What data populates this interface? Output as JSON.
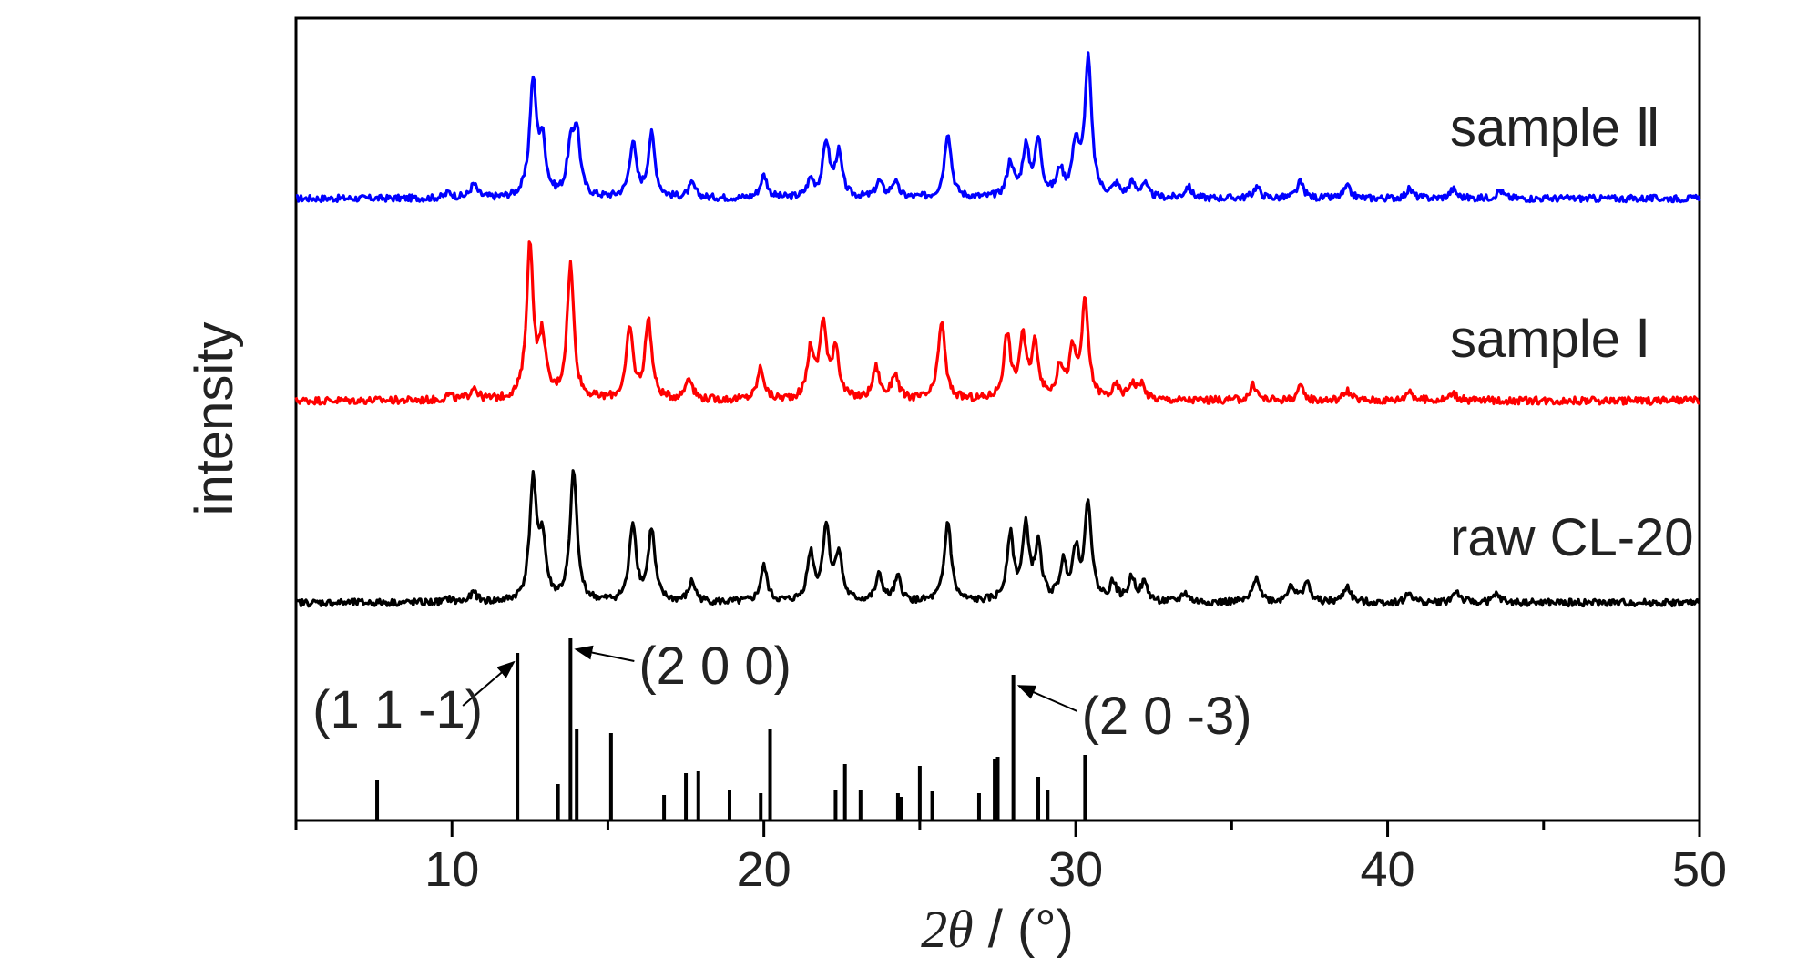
{
  "chart_data": {
    "type": "line",
    "xlabel": "2θ / (°)",
    "xlabel_parts": {
      "symbol": "2θ",
      "unit": " / (°)"
    },
    "ylabel": "intensity",
    "xlim": [
      5,
      50
    ],
    "x_ticks": [
      10,
      20,
      30,
      40,
      50
    ],
    "grid": false,
    "legend": "none",
    "series": [
      {
        "name": "sample Ⅱ",
        "color": "#0000ff",
        "peaks": [
          [
            9.9,
            0.05
          ],
          [
            10.7,
            0.12
          ],
          [
            12.6,
            1.0
          ],
          [
            12.9,
            0.45
          ],
          [
            13.8,
            0.38
          ],
          [
            14.0,
            0.55
          ],
          [
            15.8,
            0.48
          ],
          [
            16.4,
            0.55
          ],
          [
            17.7,
            0.12
          ],
          [
            20.0,
            0.2
          ],
          [
            21.5,
            0.15
          ],
          [
            22.0,
            0.48
          ],
          [
            22.4,
            0.38
          ],
          [
            23.7,
            0.14
          ],
          [
            24.2,
            0.14
          ],
          [
            25.9,
            0.58
          ],
          [
            27.9,
            0.3
          ],
          [
            28.4,
            0.42
          ],
          [
            28.8,
            0.48
          ],
          [
            29.5,
            0.22
          ],
          [
            30.0,
            0.45
          ],
          [
            30.4,
            1.2
          ],
          [
            31.3,
            0.1
          ],
          [
            31.8,
            0.12
          ],
          [
            32.2,
            0.12
          ],
          [
            33.6,
            0.1
          ],
          [
            35.8,
            0.1
          ],
          [
            37.2,
            0.14
          ],
          [
            38.7,
            0.1
          ],
          [
            40.7,
            0.08
          ],
          [
            42.1,
            0.08
          ],
          [
            43.6,
            0.07
          ]
        ]
      },
      {
        "name": "sample Ⅰ",
        "color": "#ff0000",
        "peaks": [
          [
            9.9,
            0.04
          ],
          [
            10.7,
            0.1
          ],
          [
            12.5,
            1.2
          ],
          [
            12.9,
            0.45
          ],
          [
            13.8,
            1.05
          ],
          [
            15.7,
            0.55
          ],
          [
            16.3,
            0.62
          ],
          [
            17.6,
            0.18
          ],
          [
            19.9,
            0.25
          ],
          [
            21.5,
            0.38
          ],
          [
            21.9,
            0.58
          ],
          [
            22.3,
            0.4
          ],
          [
            23.6,
            0.25
          ],
          [
            24.2,
            0.2
          ],
          [
            25.7,
            0.62
          ],
          [
            27.8,
            0.5
          ],
          [
            28.3,
            0.46
          ],
          [
            28.7,
            0.42
          ],
          [
            29.5,
            0.25
          ],
          [
            29.9,
            0.35
          ],
          [
            30.3,
            0.75
          ],
          [
            31.3,
            0.1
          ],
          [
            31.8,
            0.12
          ],
          [
            32.1,
            0.12
          ],
          [
            35.7,
            0.12
          ],
          [
            37.2,
            0.1
          ],
          [
            38.7,
            0.08
          ],
          [
            40.7,
            0.08
          ],
          [
            42.1,
            0.06
          ]
        ]
      },
      {
        "name": "raw CL-20",
        "color": "#000000",
        "peaks": [
          [
            9.9,
            0.03
          ],
          [
            10.7,
            0.08
          ],
          [
            12.6,
            1.0
          ],
          [
            12.9,
            0.5
          ],
          [
            13.9,
            1.1
          ],
          [
            15.8,
            0.66
          ],
          [
            16.4,
            0.6
          ],
          [
            17.7,
            0.17
          ],
          [
            20.0,
            0.3
          ],
          [
            21.5,
            0.4
          ],
          [
            22.0,
            0.63
          ],
          [
            22.4,
            0.4
          ],
          [
            23.7,
            0.22
          ],
          [
            24.3,
            0.2
          ],
          [
            25.9,
            0.68
          ],
          [
            27.9,
            0.55
          ],
          [
            28.4,
            0.6
          ],
          [
            28.8,
            0.45
          ],
          [
            29.6,
            0.3
          ],
          [
            30.0,
            0.4
          ],
          [
            30.4,
            0.82
          ],
          [
            31.2,
            0.15
          ],
          [
            31.8,
            0.2
          ],
          [
            32.2,
            0.15
          ],
          [
            33.5,
            0.08
          ],
          [
            35.8,
            0.22
          ],
          [
            36.9,
            0.15
          ],
          [
            37.4,
            0.17
          ],
          [
            38.7,
            0.14
          ],
          [
            40.7,
            0.08
          ],
          [
            42.2,
            0.1
          ],
          [
            43.5,
            0.07
          ]
        ]
      }
    ],
    "reference_sticks": [
      [
        7.6,
        0.22
      ],
      [
        12.1,
        0.92
      ],
      [
        13.4,
        0.2
      ],
      [
        13.8,
        1.0
      ],
      [
        14.0,
        0.5
      ],
      [
        15.1,
        0.48
      ],
      [
        16.8,
        0.14
      ],
      [
        17.5,
        0.26
      ],
      [
        17.9,
        0.27
      ],
      [
        18.9,
        0.17
      ],
      [
        19.9,
        0.15
      ],
      [
        20.2,
        0.5
      ],
      [
        22.3,
        0.17
      ],
      [
        22.6,
        0.31
      ],
      [
        23.1,
        0.17
      ],
      [
        24.3,
        0.15
      ],
      [
        24.4,
        0.13
      ],
      [
        25.0,
        0.3
      ],
      [
        25.4,
        0.16
      ],
      [
        26.9,
        0.15
      ],
      [
        27.4,
        0.34
      ],
      [
        27.5,
        0.35
      ],
      [
        28.0,
        0.8
      ],
      [
        28.8,
        0.24
      ],
      [
        29.1,
        0.17
      ],
      [
        30.3,
        0.36
      ]
    ],
    "annotations": [
      {
        "label": "(1 1 -1)",
        "x": 12.1
      },
      {
        "label": "(2 0 0)",
        "x": 13.8
      },
      {
        "label": "(2 0 -3)",
        "x": 28.0
      }
    ]
  }
}
